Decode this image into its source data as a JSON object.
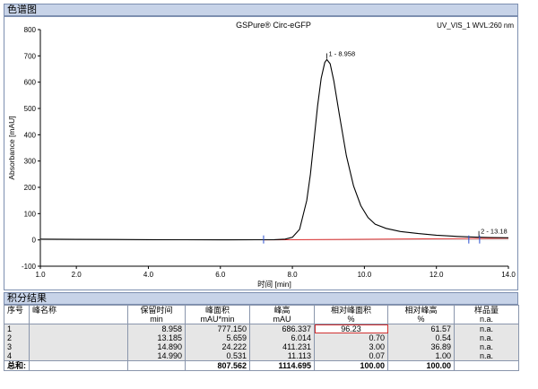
{
  "window": {
    "chart_section_title": "色谱图",
    "results_section_title": "积分结果"
  },
  "chart_data": {
    "type": "line",
    "title": "GSPure® Circ-eGFP",
    "top_right_label": "UV_VIS_1  WVL:260 nm",
    "xlabel": "时间 [min]",
    "ylabel": "Absorbance [mAU]",
    "xlim": [
      1.0,
      14.0
    ],
    "ylim": [
      -100,
      800
    ],
    "x_ticks": [
      "1.0",
      "2.0",
      "4.0",
      "6.0",
      "8.0",
      "10.0",
      "12.0",
      "14.0"
    ],
    "x_tick_values": [
      1.0,
      2.0,
      4.0,
      6.0,
      8.0,
      10.0,
      12.0,
      14.0
    ],
    "y_ticks": [
      "-100",
      "0",
      "100",
      "200",
      "300",
      "400",
      "500",
      "600",
      "700",
      "800"
    ],
    "y_tick_values": [
      -100,
      0,
      100,
      200,
      300,
      400,
      500,
      600,
      700,
      800
    ],
    "series": [
      {
        "values": [
          [
            1.0,
            3
          ],
          [
            2.0,
            2
          ],
          [
            3.0,
            1.5
          ],
          [
            4.0,
            1
          ],
          [
            5.0,
            0.5
          ],
          [
            6.0,
            0.3
          ],
          [
            7.0,
            0.5
          ],
          [
            7.5,
            1
          ],
          [
            7.8,
            3
          ],
          [
            8.0,
            10
          ],
          [
            8.2,
            40
          ],
          [
            8.4,
            150
          ],
          [
            8.5,
            250
          ],
          [
            8.6,
            380
          ],
          [
            8.7,
            510
          ],
          [
            8.8,
            615
          ],
          [
            8.9,
            675
          ],
          [
            8.958,
            686
          ],
          [
            9.05,
            670
          ],
          [
            9.15,
            605
          ],
          [
            9.3,
            480
          ],
          [
            9.5,
            320
          ],
          [
            9.7,
            205
          ],
          [
            9.9,
            130
          ],
          [
            10.1,
            85
          ],
          [
            10.3,
            60
          ],
          [
            10.6,
            44
          ],
          [
            11.0,
            32
          ],
          [
            11.5,
            24
          ],
          [
            12.0,
            18
          ],
          [
            12.5,
            14
          ],
          [
            13.0,
            11
          ],
          [
            13.18,
            10
          ],
          [
            13.5,
            9
          ],
          [
            14.0,
            8
          ]
        ]
      }
    ],
    "baseline": [
      [
        7.2,
        0
      ],
      [
        14.0,
        6
      ]
    ],
    "annotations": [
      {
        "x": 8.958,
        "y": 686,
        "text": "1 - 8.958"
      },
      {
        "x": 13.18,
        "y": 10,
        "text": "2 - 13.18"
      }
    ],
    "integration_markers_x": [
      7.2,
      12.9,
      13.2
    ],
    "colors": {
      "trace": "#000000",
      "baseline": "#e03030",
      "axis": "#000000",
      "markers": "#2a4fd0"
    },
    "grid": false
  },
  "results_table": {
    "headers_row1": [
      "序号",
      "峰名称",
      "保留时间",
      "峰面积",
      "峰高",
      "相对峰面积",
      "相对峰高",
      "样品量"
    ],
    "headers_row2": [
      "",
      "",
      "min",
      "mAU*min",
      "mAU",
      "%",
      "%",
      "n.a."
    ],
    "rows": [
      [
        "1",
        "",
        "8.958",
        "777.150",
        "686.337",
        "96.23",
        "61.57",
        "n.a."
      ],
      [
        "2",
        "",
        "13.185",
        "5.659",
        "6.014",
        "0.70",
        "0.54",
        "n.a."
      ],
      [
        "3",
        "",
        "14.890",
        "24.222",
        "411.231",
        "3.00",
        "36.89",
        "n.a."
      ],
      [
        "4",
        "",
        "14.990",
        "0.531",
        "11.113",
        "0.07",
        "1.00",
        "n.a."
      ]
    ],
    "totals": [
      "总和:",
      "",
      "",
      "807.562",
      "1114.695",
      "100.00",
      "100.00",
      ""
    ],
    "highlight_cell": {
      "row": 0,
      "col": 5,
      "color": "#d03030"
    }
  }
}
